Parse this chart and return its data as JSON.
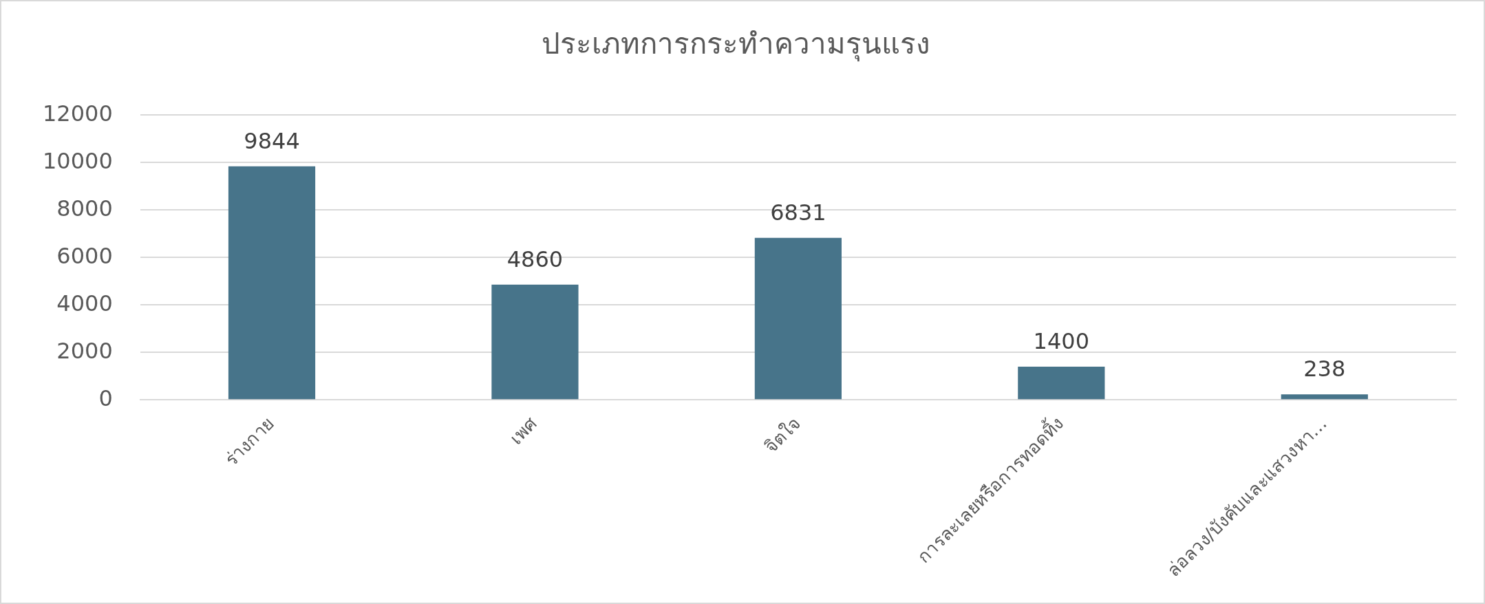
{
  "chart_data": {
    "type": "bar",
    "title": "ประเภทการกระทำความรุนแรง",
    "categories": [
      "ร่างกาย",
      "เพศ",
      "จิตใจ",
      "การละเลยหรือการทอดทิ้ง",
      "ล่อลวง/บังคับและแสวงหา…"
    ],
    "values": [
      9844,
      4860,
      6831,
      1400,
      238
    ],
    "color": "#47748a",
    "ylim": [
      0,
      12000
    ],
    "yticks": [
      0,
      2000,
      4000,
      6000,
      8000,
      10000,
      12000
    ],
    "grid": "y",
    "data_labels": true
  }
}
